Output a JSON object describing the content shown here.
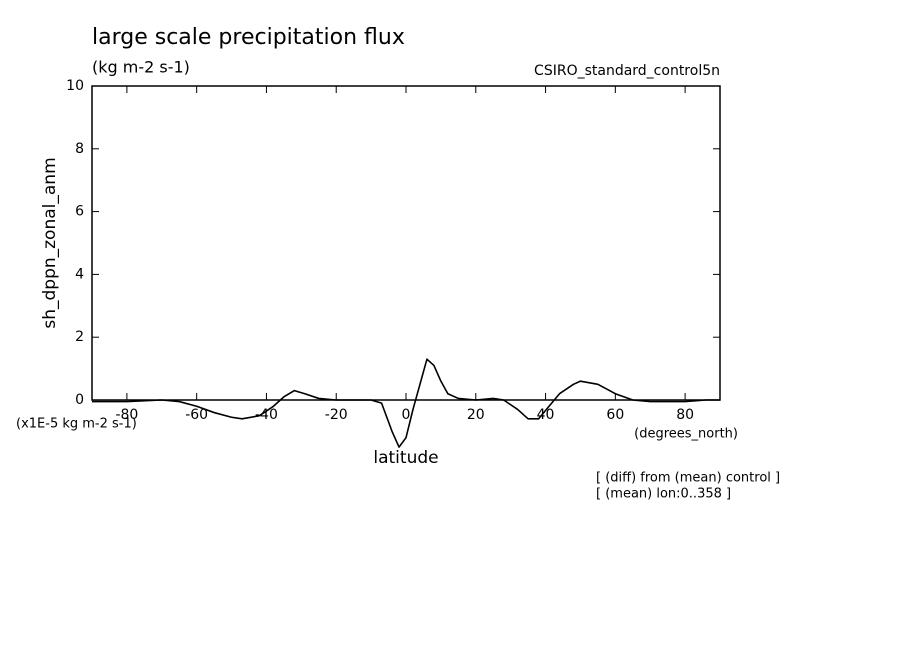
{
  "chart_data": {
    "type": "line",
    "title": "large scale precipitation flux",
    "subtitle": "(kg m-2 s-1)",
    "run_label": "CSIRO_standard_control5n",
    "y_label": "sh_dppn_zonal_anm",
    "y_units": "(x1E-5 kg m-2 s-1)",
    "x_label": "latitude",
    "x_units": "(degrees_north)",
    "notes": [
      "[ (diff) from (mean) control ]",
      "[ (mean) lon:0..358 ]"
    ],
    "x": [
      -90,
      -80,
      -70,
      -65,
      -60,
      -55,
      -50,
      -47,
      -42,
      -38,
      -35,
      -32,
      -29,
      -25,
      -20,
      -10,
      -7,
      -4,
      -2,
      0,
      2,
      4,
      6,
      8,
      10,
      12,
      15,
      20,
      25,
      28,
      32,
      35,
      38,
      41,
      44,
      48,
      50,
      55,
      60,
      65,
      70,
      80,
      86,
      90
    ],
    "series": [
      {
        "color": "#000000",
        "values": [
          -0.05,
          -0.05,
          0.0,
          -0.05,
          -0.2,
          -0.4,
          -0.55,
          -0.6,
          -0.5,
          -0.2,
          0.1,
          0.3,
          0.2,
          0.05,
          0.0,
          0.0,
          -0.1,
          -1.0,
          -1.5,
          -1.2,
          -0.3,
          0.5,
          1.3,
          1.1,
          0.6,
          0.2,
          0.05,
          0.0,
          0.05,
          0.0,
          -0.3,
          -0.6,
          -0.6,
          -0.2,
          0.2,
          0.5,
          0.6,
          0.5,
          0.2,
          0.0,
          -0.05,
          -0.05,
          0.0,
          0.0
        ]
      }
    ],
    "xlim": [
      -90,
      90
    ],
    "ylim": [
      0,
      10
    ],
    "xticks": [
      -80,
      -60,
      -40,
      -20,
      0,
      20,
      40,
      60,
      80
    ],
    "yticks": [
      0,
      2,
      4,
      6,
      8,
      10
    ]
  }
}
